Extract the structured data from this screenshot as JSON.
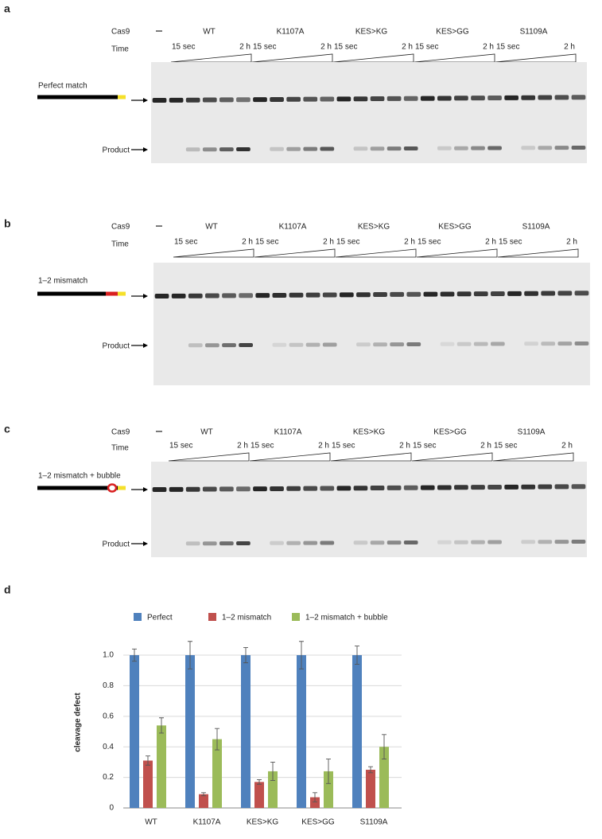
{
  "panels": [
    {
      "label": "a",
      "cas9": "Cas9",
      "time": "Time",
      "time_start": "15 sec",
      "time_end": "2 h",
      "groups": [
        "WT",
        "K1107A",
        "KES>KG",
        "KES>GG",
        "S1109A"
      ],
      "substrate": "Perfect match",
      "product": "Product"
    },
    {
      "label": "b",
      "cas9": "Cas9",
      "time": "Time",
      "time_start": "15 sec",
      "time_end": "2 h",
      "groups": [
        "WT",
        "K1107A",
        "KES>KG",
        "KES>GG",
        "S1109A"
      ],
      "substrate": "1–2 mismatch",
      "product": "Product"
    },
    {
      "label": "c",
      "cas9": "Cas9",
      "time": "Time",
      "time_start": "15 sec",
      "time_end": "2 h",
      "groups": [
        "WT",
        "K1107A",
        "KES>KG",
        "KES>GG",
        "S1109A"
      ],
      "substrate": "1–2 mismatch + bubble",
      "product": "Product"
    }
  ],
  "chart_data": {
    "type": "bar",
    "label": "d",
    "y_label": "cleavage defect",
    "categories": [
      "WT",
      "K1107A",
      "KES>KG",
      "KES>GG",
      "S1109A"
    ],
    "series": [
      {
        "name": "Perfect",
        "color": "#4f81bd",
        "values": [
          1.0,
          1.0,
          1.0,
          1.0,
          1.0
        ],
        "errors": [
          0.04,
          0.09,
          0.05,
          0.09,
          0.06
        ]
      },
      {
        "name": "1–2 mismatch",
        "color": "#c0504d",
        "values": [
          0.31,
          0.09,
          0.17,
          0.07,
          0.25
        ],
        "errors": [
          0.03,
          0.01,
          0.015,
          0.03,
          0.02
        ]
      },
      {
        "name": "1–2 mismatch + bubble",
        "color": "#9bbb59",
        "values": [
          0.54,
          0.45,
          0.24,
          0.24,
          0.4
        ],
        "errors": [
          0.05,
          0.07,
          0.06,
          0.08,
          0.08
        ]
      }
    ],
    "ylim": [
      0,
      1.12
    ],
    "yticks": [
      0,
      0.2,
      0.4,
      0.6,
      0.8,
      {
        "value": 1,
        "label": "1.0"
      }
    ],
    "grid": true
  }
}
